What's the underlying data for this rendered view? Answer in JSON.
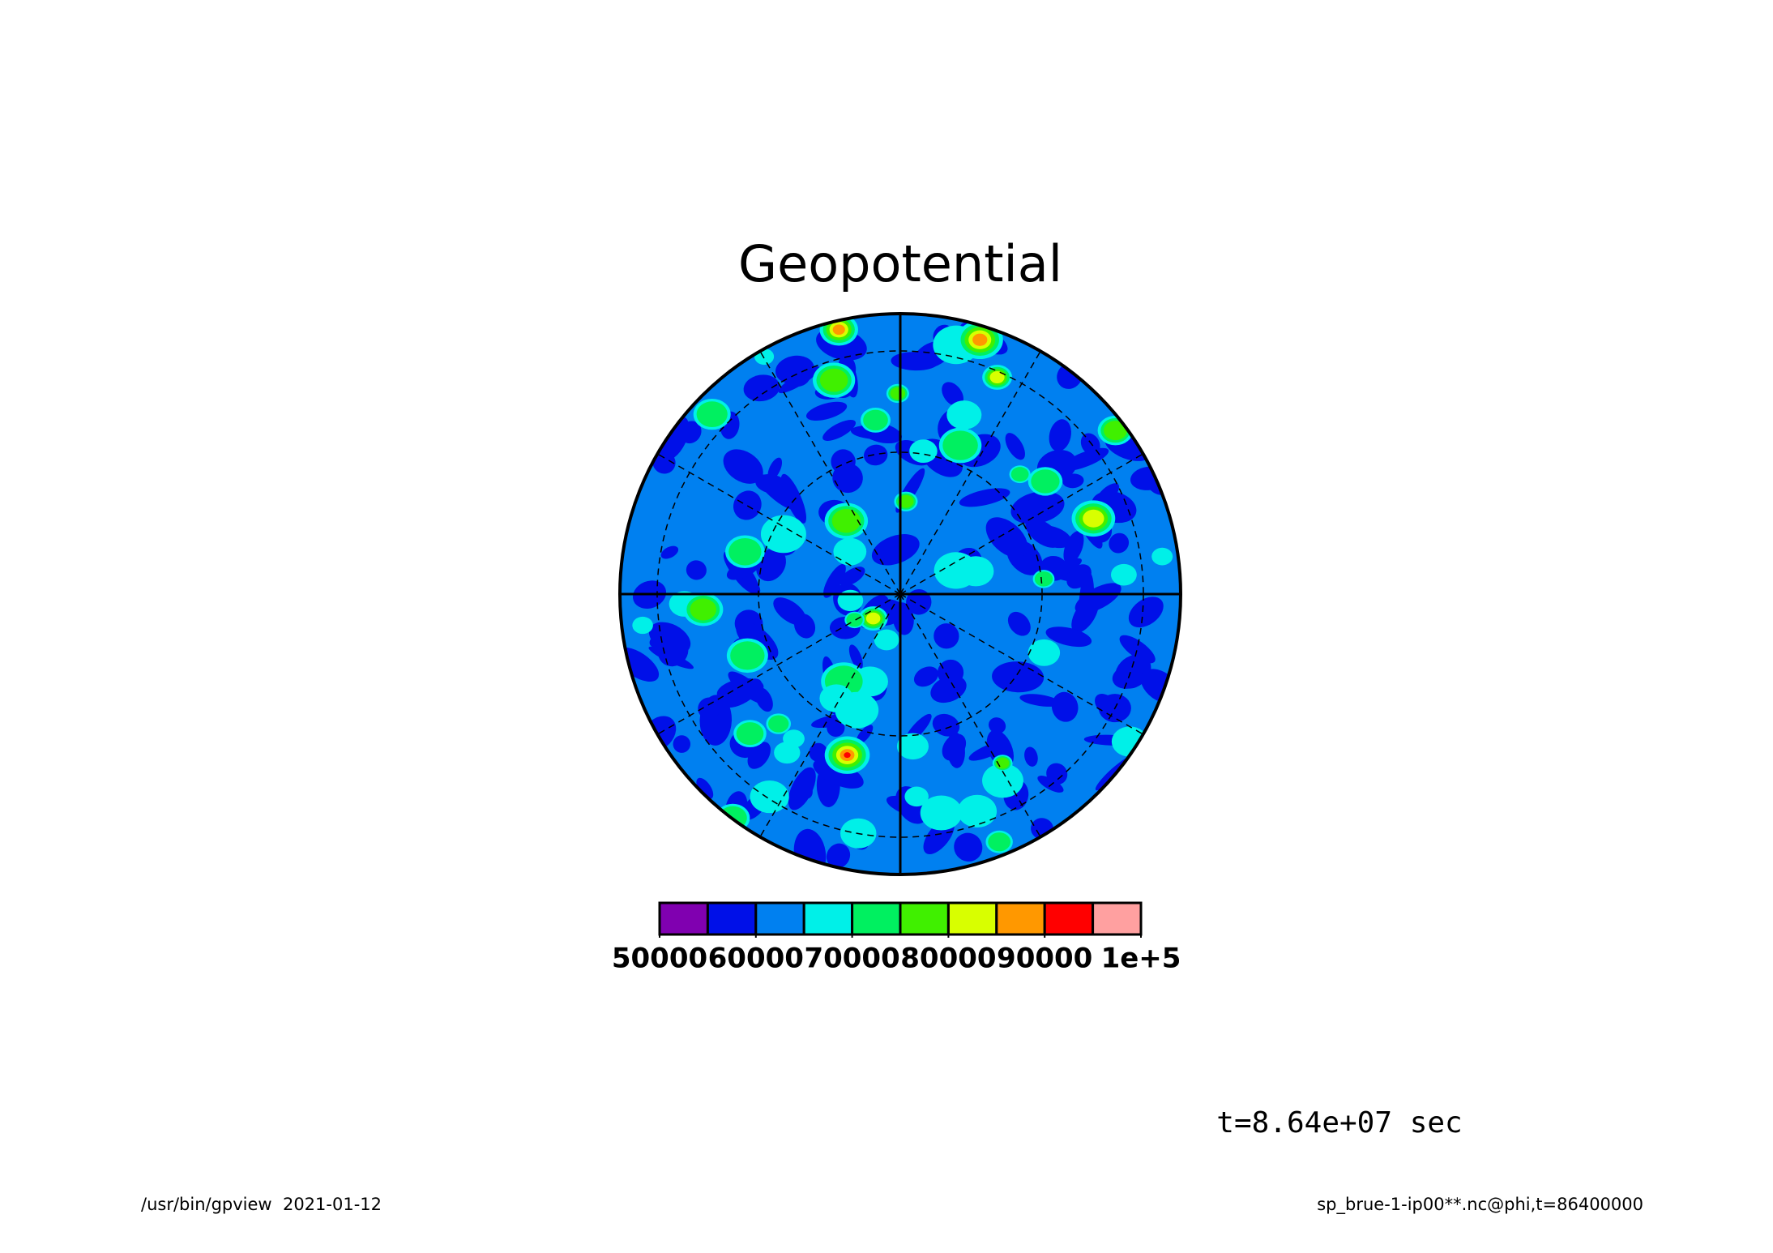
{
  "chart_data": {
    "type": "contour",
    "title": "Geopotential",
    "levels": [
      50000,
      55000,
      60000,
      65000,
      70000,
      75000,
      80000,
      85000,
      90000,
      95000
    ],
    "colors": [
      "#8000b0",
      "#0010e8",
      "#0080f0",
      "#00f0e8",
      "#00f060",
      "#40f000",
      "#d8ff00",
      "#ff9800",
      "#ff0000",
      "#ffa0a0"
    ],
    "clim": [
      50000,
      100000
    ],
    "cticks": [
      50000,
      60000,
      70000,
      80000,
      90000,
      {
        "value": 100000,
        "label": "1e+5"
      }
    ],
    "annotation": "t=8.64e+07 sec",
    "footer_left": "/usr/bin/gpview  2021-01-12",
    "footer_right": "sp_brue-1-ip00**.nc@phi,t=86400000"
  }
}
